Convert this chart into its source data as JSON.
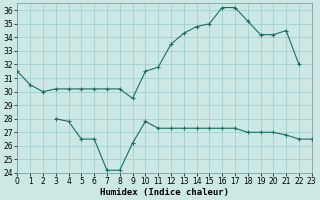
{
  "xlabel": "Humidex (Indice chaleur)",
  "background_color": "#cce8e4",
  "line_color": "#1a6e64",
  "grid_color": "#99cccc",
  "series1_x": [
    0,
    1,
    2,
    3,
    4,
    5,
    6,
    7,
    8,
    9,
    10,
    11,
    12,
    13,
    14,
    15,
    16,
    17,
    18,
    19,
    20,
    21,
    22
  ],
  "series1_y": [
    31.5,
    30.5,
    30.0,
    30.2,
    30.2,
    30.2,
    30.2,
    30.2,
    30.2,
    29.5,
    31.5,
    31.8,
    33.5,
    34.3,
    34.8,
    35.0,
    36.2,
    36.2,
    35.2,
    34.2,
    34.2,
    34.5,
    32.0
  ],
  "series2_x": [
    3,
    4,
    5,
    6,
    7,
    8,
    9,
    10,
    11,
    12,
    13,
    14,
    15,
    16,
    17,
    18,
    19,
    20,
    21,
    22,
    23
  ],
  "series2_y": [
    28.0,
    27.8,
    26.5,
    26.5,
    24.2,
    24.2,
    26.2,
    27.8,
    27.3,
    27.3,
    27.3,
    27.3,
    27.3,
    27.3,
    27.3,
    27.0,
    27.0,
    27.0,
    26.8,
    26.5,
    26.5
  ],
  "xlim": [
    0,
    23
  ],
  "ylim": [
    24,
    36.5
  ],
  "yticks": [
    24,
    25,
    26,
    27,
    28,
    29,
    30,
    31,
    32,
    33,
    34,
    35,
    36
  ],
  "xticks": [
    0,
    1,
    2,
    3,
    4,
    5,
    6,
    7,
    8,
    9,
    10,
    11,
    12,
    13,
    14,
    15,
    16,
    17,
    18,
    19,
    20,
    21,
    22,
    23
  ],
  "tick_fontsize": 5.5,
  "label_fontsize": 6.5
}
